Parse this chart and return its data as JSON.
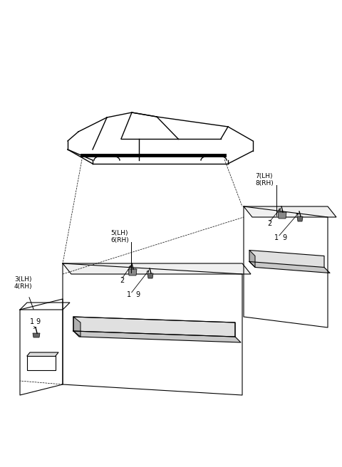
{
  "bg_color": "#ffffff",
  "line_color": "#000000",
  "gray_color": "#888888",
  "light_gray": "#cccccc",
  "fig_width": 4.8,
  "fig_height": 6.56,
  "dpi": 100,
  "labels": {
    "part3": "3(LH)",
    "part4": "4(RH)",
    "part5": "5(LH)",
    "part6": "6(RH)",
    "part7": "7(LH)",
    "part8": "8(RH)",
    "num1a": "1",
    "num2a": "2",
    "num9a": "9",
    "num1b": "1",
    "num2b": "2",
    "num9b": "9",
    "num1c": "1",
    "num9c": "9"
  }
}
